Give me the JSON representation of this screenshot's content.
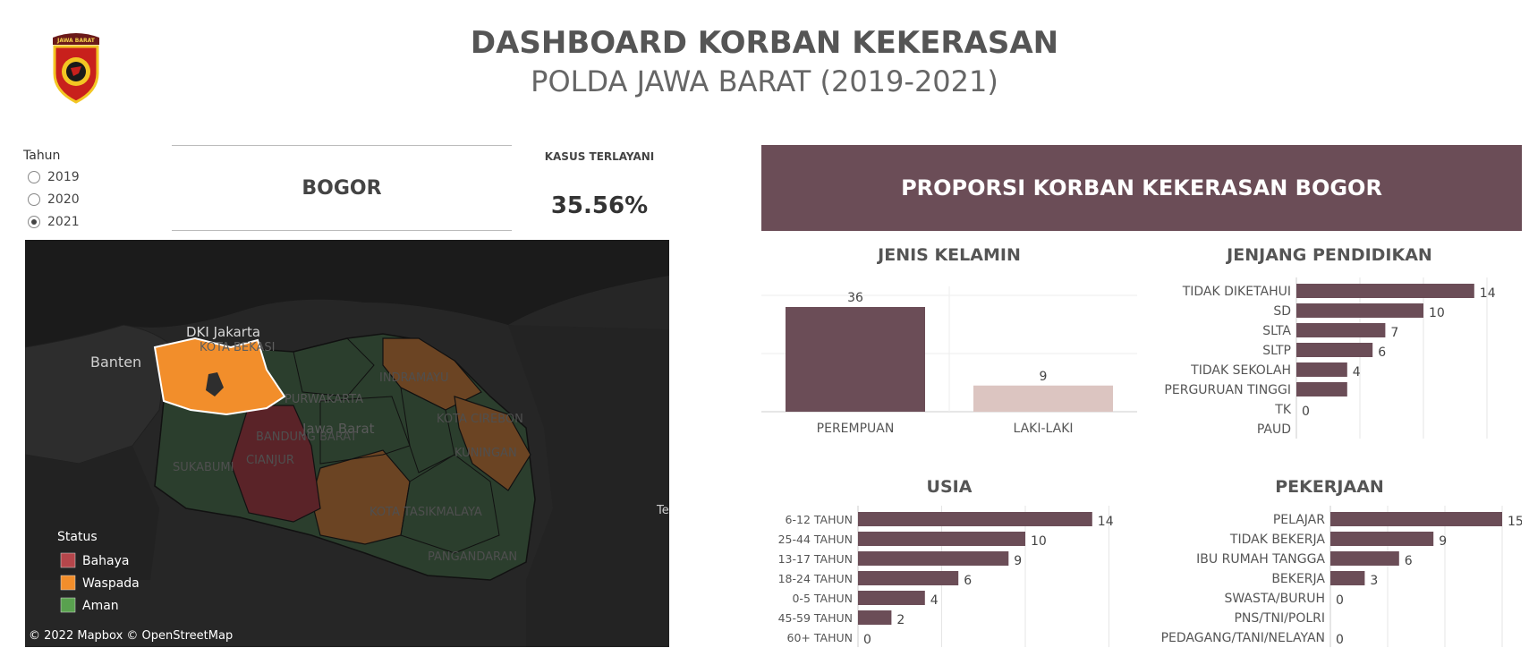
{
  "header": {
    "title": "DASHBOARD KORBAN KEKERASAN",
    "subtitle": "POLDA JAWA BARAT (2019-2021)",
    "logo_text": "JAWA BARAT"
  },
  "filter": {
    "label": "Tahun",
    "options": [
      "2019",
      "2020",
      "2021"
    ],
    "selected": "2021"
  },
  "selected_region": "BOGOR",
  "kasus": {
    "label": "KASUS TERLAYANI",
    "value": "35.56%"
  },
  "map": {
    "labels": [
      "DKI Jakarta",
      "KOTA BEKASI",
      "Banten",
      "INDRAMAYU",
      "PURWAKARTA",
      "Jawa Barat",
      "KOTA CIREBON",
      "BANDUNG BARAT",
      "KUNINGAN",
      "SUKABUMI",
      "CIANJUR",
      "KOTA TASIKMALAYA",
      "PANGANDARAN",
      "Te"
    ],
    "legend_title": "Status",
    "legend": [
      {
        "label": "Bahaya",
        "color": "#b5464b"
      },
      {
        "label": "Waspada",
        "color": "#f28e2b"
      },
      {
        "label": "Aman",
        "color": "#59a14f"
      }
    ],
    "attribution": "© 2022 Mapbox  © OpenStreetMap"
  },
  "panel_title": "PROPORSI KORBAN KEKERASAN BOGOR",
  "colors": {
    "bar": "#6b4d57",
    "bar_light": "#dcc5c1",
    "banner": "#6b4d57"
  },
  "chart_data": [
    {
      "type": "bar",
      "title": "JENIS KELAMIN",
      "categories": [
        "PEREMPUAN",
        "LAKI-LAKI"
      ],
      "values": [
        36,
        9
      ]
    },
    {
      "type": "bar",
      "title": "JENJANG PENDIDIKAN",
      "categories": [
        "TIDAK DIKETAHUI",
        "SD",
        "SLTA",
        "SLTP",
        "TIDAK SEKOLAH",
        "PERGURUAN TINGGI",
        "TK",
        "PAUD"
      ],
      "values": [
        14,
        10,
        7,
        6,
        4,
        4,
        0,
        null
      ],
      "value_labels": [
        "14",
        "10",
        "7",
        "6",
        "4",
        "",
        "0",
        ""
      ]
    },
    {
      "type": "bar",
      "title": "USIA",
      "categories": [
        "6-12 TAHUN",
        "25-44 TAHUN",
        "13-17 TAHUN",
        "18-24 TAHUN",
        "0-5 TAHUN",
        "45-59 TAHUN",
        "60+ TAHUN"
      ],
      "values": [
        14,
        10,
        9,
        6,
        4,
        2,
        0
      ]
    },
    {
      "type": "bar",
      "title": "PEKERJAAN",
      "categories": [
        "PELAJAR",
        "TIDAK BEKERJA",
        "IBU RUMAH TANGGA",
        "BEKERJA",
        "SWASTA/BURUH",
        "PNS/TNI/POLRI",
        "PEDAGANG/TANI/NELAYAN"
      ],
      "values": [
        15,
        9,
        6,
        3,
        0,
        null,
        0
      ],
      "value_labels": [
        "15",
        "9",
        "6",
        "3",
        "0",
        "",
        "0"
      ]
    }
  ]
}
